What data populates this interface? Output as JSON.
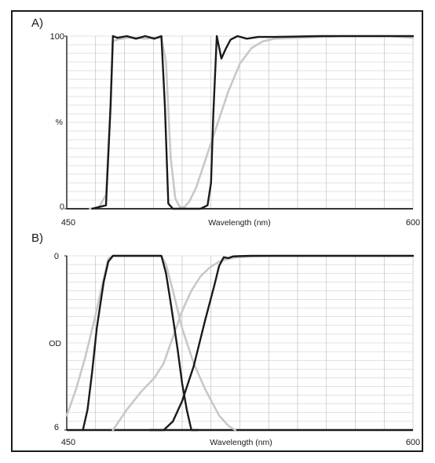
{
  "chart_data": [
    {
      "type": "line",
      "panel_label": "A)",
      "xlabel": "Wavelength (nm)",
      "ylabel": "%",
      "xlim": [
        450,
        600
      ],
      "ylim": [
        0,
        100
      ],
      "x_tick_labels": [
        "450",
        "600"
      ],
      "y_tick_labels": [
        "100",
        "0"
      ],
      "grid": true,
      "series": [
        {
          "color": "#1a1a1a",
          "x": [
            461,
            467,
            469,
            470,
            472,
            476,
            480,
            484,
            488,
            491,
            492.5,
            494,
            496,
            500,
            504,
            508,
            511,
            512.5,
            513.5,
            515,
            517,
            519,
            521,
            524,
            528,
            533,
            540,
            560,
            580,
            600
          ],
          "y": [
            0,
            2,
            60,
            100,
            99,
            100,
            98.5,
            100,
            98.5,
            100,
            60,
            3,
            0,
            0,
            0,
            0,
            2,
            15,
            55,
            100,
            87,
            93,
            98,
            100,
            98.5,
            99.5,
            99.5,
            100,
            100,
            100
          ]
        },
        {
          "color": "#c8c8c8",
          "x": [
            460,
            464,
            467,
            469,
            470,
            472,
            476,
            480,
            484,
            488,
            491,
            493,
            495,
            497,
            499,
            501,
            503,
            506,
            510,
            515,
            520,
            525,
            530,
            535,
            540,
            550,
            560,
            570,
            580,
            590,
            600
          ],
          "y": [
            0,
            1,
            8,
            60,
            97,
            98,
            99,
            99,
            98.5,
            99,
            99,
            85,
            30,
            6,
            1,
            1,
            4,
            12,
            28,
            48,
            68,
            84,
            93,
            97,
            98.5,
            99,
            99.5,
            100,
            100,
            100,
            99
          ]
        }
      ]
    },
    {
      "type": "line",
      "panel_label": "B)",
      "xlabel": "Wavelength (nm)",
      "ylabel": "OD",
      "xlim": [
        450,
        600
      ],
      "ylim": [
        6,
        0
      ],
      "x_tick_labels": [
        "450",
        "600"
      ],
      "y_tick_labels": [
        "0",
        "6"
      ],
      "grid": true,
      "series": [
        {
          "color": "#c8c8c8",
          "x": [
            450,
            454,
            458,
            462,
            466,
            468,
            470,
            472,
            480,
            488,
            491,
            493,
            496,
            500,
            505,
            510,
            516,
            520,
            523
          ],
          "y": [
            5.5,
            4.6,
            3.5,
            2.2,
            0.8,
            0.1,
            0,
            0,
            0,
            0,
            0,
            0.3,
            1.2,
            2.5,
            3.7,
            4.6,
            5.5,
            5.85,
            6
          ]
        },
        {
          "color": "#c8c8c8",
          "x": [
            470,
            476,
            482,
            488,
            492,
            496,
            500,
            504,
            508,
            512,
            516,
            520,
            524,
            530,
            540,
            560,
            600
          ],
          "y": [
            6,
            5.3,
            4.7,
            4.2,
            3.7,
            2.8,
            1.9,
            1.2,
            0.7,
            0.4,
            0.2,
            0.1,
            0.05,
            0.02,
            0,
            0,
            0
          ]
        },
        {
          "color": "#1a1a1a",
          "x": [
            457,
            459,
            461,
            463,
            466,
            468,
            470,
            472,
            480,
            488,
            491,
            493,
            495,
            498,
            500,
            502,
            504,
            507
          ],
          "y": [
            6,
            5.3,
            4,
            2.5,
            0.9,
            0.2,
            0,
            0,
            0,
            0,
            0,
            0.6,
            1.6,
            3.2,
            4.4,
            5.3,
            6,
            6
          ]
        },
        {
          "color": "#1a1a1a",
          "x": [
            486,
            492,
            494,
            496,
            500,
            505,
            510,
            514,
            516,
            518,
            520,
            522,
            525,
            530,
            540,
            560,
            600
          ],
          "y": [
            6,
            6,
            5.85,
            5.7,
            5.0,
            3.8,
            2.2,
            1.0,
            0.35,
            0.05,
            0.08,
            0.02,
            0.01,
            0,
            0,
            0,
            0
          ]
        }
      ]
    }
  ]
}
